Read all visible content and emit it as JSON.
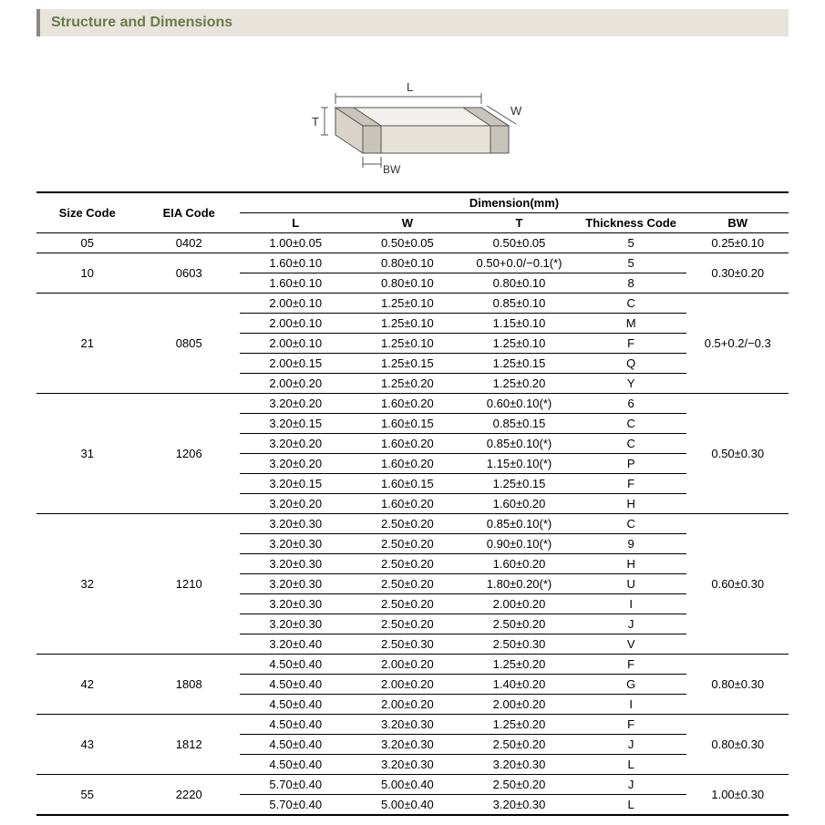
{
  "header": {
    "title": "Structure and Dimensions"
  },
  "diagram": {
    "labels": {
      "L": "L",
      "W": "W",
      "T": "T",
      "BW": "BW"
    },
    "stroke": "#555555",
    "fill_top": "#f2f0ec",
    "fill_side": "#d8d4cc",
    "fill_front": "#e6e2da",
    "cap_fill": "#c9c4bb"
  },
  "table": {
    "head": {
      "size": "Size Code",
      "eia": "EIA Code",
      "dimhdr": "Dimension(mm)",
      "L": "L",
      "W": "W",
      "T": "T",
      "TC": "Thickness  Code",
      "BW": "BW"
    },
    "groups": [
      {
        "size": "05",
        "eia": "0402",
        "bw": "0.25±0.10",
        "rows": [
          {
            "L": "1.00±0.05",
            "W": "0.50±0.05",
            "T": "0.50±0.05",
            "TC": "5"
          }
        ]
      },
      {
        "size": "10",
        "eia": "0603",
        "bw": "0.30±0.20",
        "rows": [
          {
            "L": "1.60±0.10",
            "W": "0.80±0.10",
            "T": "0.50+0.0/−0.1(*)",
            "TC": "5"
          },
          {
            "L": "1.60±0.10",
            "W": "0.80±0.10",
            "T": "0.80±0.10",
            "TC": "8"
          }
        ]
      },
      {
        "size": "21",
        "eia": "0805",
        "bw": "0.5+0.2/−0.3",
        "rows": [
          {
            "L": "2.00±0.10",
            "W": "1.25±0.10",
            "T": "0.85±0.10",
            "TC": "C"
          },
          {
            "L": "2.00±0.10",
            "W": "1.25±0.10",
            "T": "1.15±0.10",
            "TC": "M"
          },
          {
            "L": "2.00±0.10",
            "W": "1.25±0.10",
            "T": "1.25±0.10",
            "TC": "F"
          },
          {
            "L": "2.00±0.15",
            "W": "1.25±0.15",
            "T": "1.25±0.15",
            "TC": "Q"
          },
          {
            "L": "2.00±0.20",
            "W": "1.25±0.20",
            "T": "1.25±0.20",
            "TC": "Y"
          }
        ]
      },
      {
        "size": "31",
        "eia": "1206",
        "bw": "0.50±0.30",
        "rows": [
          {
            "L": "3.20±0.20",
            "W": "1.60±0.20",
            "T": "0.60±0.10(*)",
            "TC": "6"
          },
          {
            "L": "3.20±0.15",
            "W": "1.60±0.15",
            "T": "0.85±0.15",
            "TC": "C"
          },
          {
            "L": "3.20±0.20",
            "W": "1.60±0.20",
            "T": "0.85±0.10(*)",
            "TC": "C"
          },
          {
            "L": "3.20±0.20",
            "W": "1.60±0.20",
            "T": "1.15±0.10(*)",
            "TC": "P"
          },
          {
            "L": "3.20±0.15",
            "W": "1.60±0.15",
            "T": "1.25±0.15",
            "TC": "F"
          },
          {
            "L": "3.20±0.20",
            "W": "1.60±0.20",
            "T": "1.60±0.20",
            "TC": "H"
          }
        ]
      },
      {
        "size": "32",
        "eia": "1210",
        "bw": "0.60±0.30",
        "rows": [
          {
            "L": "3.20±0.30",
            "W": "2.50±0.20",
            "T": "0.85±0.10(*)",
            "TC": "C"
          },
          {
            "L": "3.20±0.30",
            "W": "2.50±0.20",
            "T": "0.90±0.10(*)",
            "TC": "9"
          },
          {
            "L": "3.20±0.30",
            "W": "2.50±0.20",
            "T": "1.60±0.20",
            "TC": "H"
          },
          {
            "L": "3.20±0.30",
            "W": "2.50±0.20",
            "T": "1.80±0.20(*)",
            "TC": "U"
          },
          {
            "L": "3.20±0.30",
            "W": "2.50±0.20",
            "T": "2.00±0.20",
            "TC": "I"
          },
          {
            "L": "3.20±0.30",
            "W": "2.50±0.20",
            "T": "2.50±0.20",
            "TC": "J"
          },
          {
            "L": "3.20±0.40",
            "W": "2.50±0.30",
            "T": "2.50±0.30",
            "TC": "V"
          }
        ]
      },
      {
        "size": "42",
        "eia": "1808",
        "bw": "0.80±0.30",
        "rows": [
          {
            "L": "4.50±0.40",
            "W": "2.00±0.20",
            "T": "1.25±0.20",
            "TC": "F"
          },
          {
            "L": "4.50±0.40",
            "W": "2.00±0.20",
            "T": "1.40±0.20",
            "TC": "G"
          },
          {
            "L": "4.50±0.40",
            "W": "2.00±0.20",
            "T": "2.00±0.20",
            "TC": "I"
          }
        ]
      },
      {
        "size": "43",
        "eia": "1812",
        "bw": "0.80±0.30",
        "rows": [
          {
            "L": "4.50±0.40",
            "W": "3.20±0.30",
            "T": "1.25±0.20",
            "TC": "F"
          },
          {
            "L": "4.50±0.40",
            "W": "3.20±0.30",
            "T": "2.50±0.20",
            "TC": "J"
          },
          {
            "L": "4.50±0.40",
            "W": "3.20±0.30",
            "T": "3.20±0.30",
            "TC": "L"
          }
        ]
      },
      {
        "size": "55",
        "eia": "2220",
        "bw": "1.00±0.30",
        "rows": [
          {
            "L": "5.70±0.40",
            "W": "5.00±0.40",
            "T": "2.50±0.20",
            "TC": "J"
          },
          {
            "L": "5.70±0.40",
            "W": "5.00±0.40",
            "T": "3.20±0.30",
            "TC": "L"
          }
        ]
      }
    ]
  }
}
